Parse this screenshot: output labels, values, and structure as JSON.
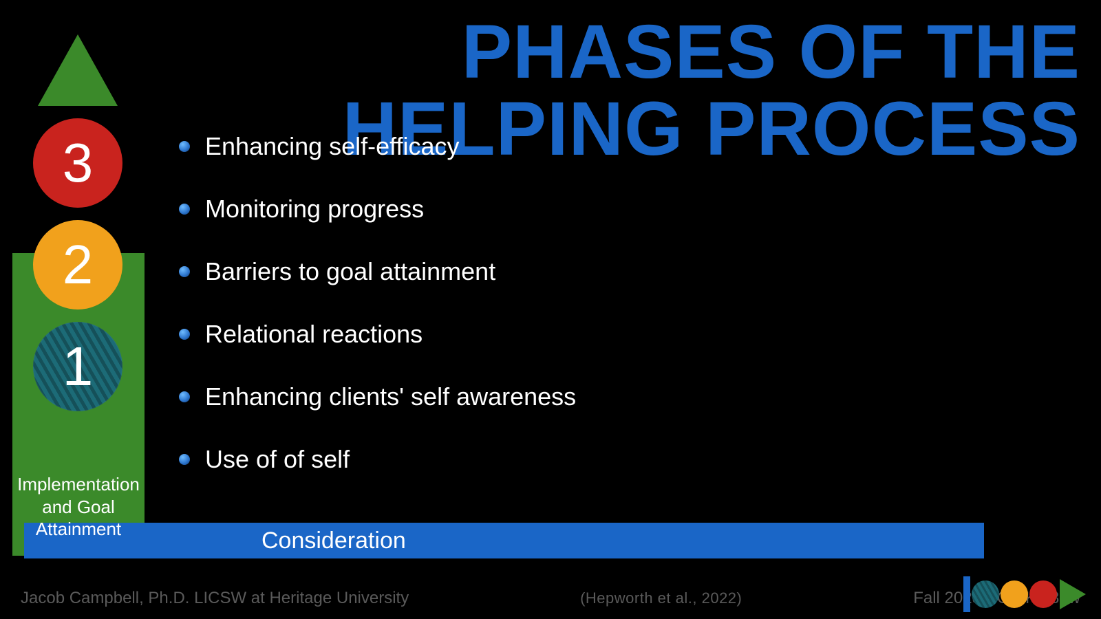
{
  "type": "presentation-slide",
  "background_color": "#000000",
  "title": {
    "line1": "PHASES OF THE",
    "line2": "HELPING PROCESS",
    "color": "#1a66c7",
    "font_weight": 800,
    "font_size_pt": 82
  },
  "phase_indicator": {
    "triangle_color": "#3b8a2a",
    "highlight_panel_color": "#3b8a2a",
    "circles": [
      {
        "label": "3",
        "color": "#c9231e"
      },
      {
        "label": "2",
        "color": "#f1a11c"
      },
      {
        "label": "1",
        "color": "#1c6b77",
        "hatched": true
      }
    ],
    "current_phase_label_line1": "Implementation",
    "current_phase_label_line2": "and Goal",
    "current_phase_label_line3": "Attainment",
    "label_color": "#ffffff",
    "label_fontsize_pt": 20
  },
  "bullets": {
    "items": [
      "Enhancing self-efficacy",
      "Monitoring progress",
      "Barriers to goal attainment",
      "Relational reactions",
      "Enhancing clients' self awareness",
      "Use of of self"
    ],
    "text_color": "#ffffff",
    "fontsize_pt": 27,
    "bullet_color": "#2f78d0"
  },
  "consideration_bar": {
    "label": "Consideration",
    "background_color": "#1a66c7",
    "text_color": "#ffffff",
    "fontsize_pt": 26
  },
  "footer": {
    "author": "Jacob Campbell, Ph.D. LICSW at Heritage University",
    "citation": "(Hepworth et al., 2022)",
    "course": "Fall 2023 SOWK 486w",
    "text_color": "#5a5a5a",
    "fontsize_pt": 18
  },
  "logo": {
    "bar_color": "#1a66c7",
    "dots": [
      "#1c6b77",
      "#f1a11c",
      "#c9231e"
    ],
    "triangle_color": "#3b8a2a"
  }
}
